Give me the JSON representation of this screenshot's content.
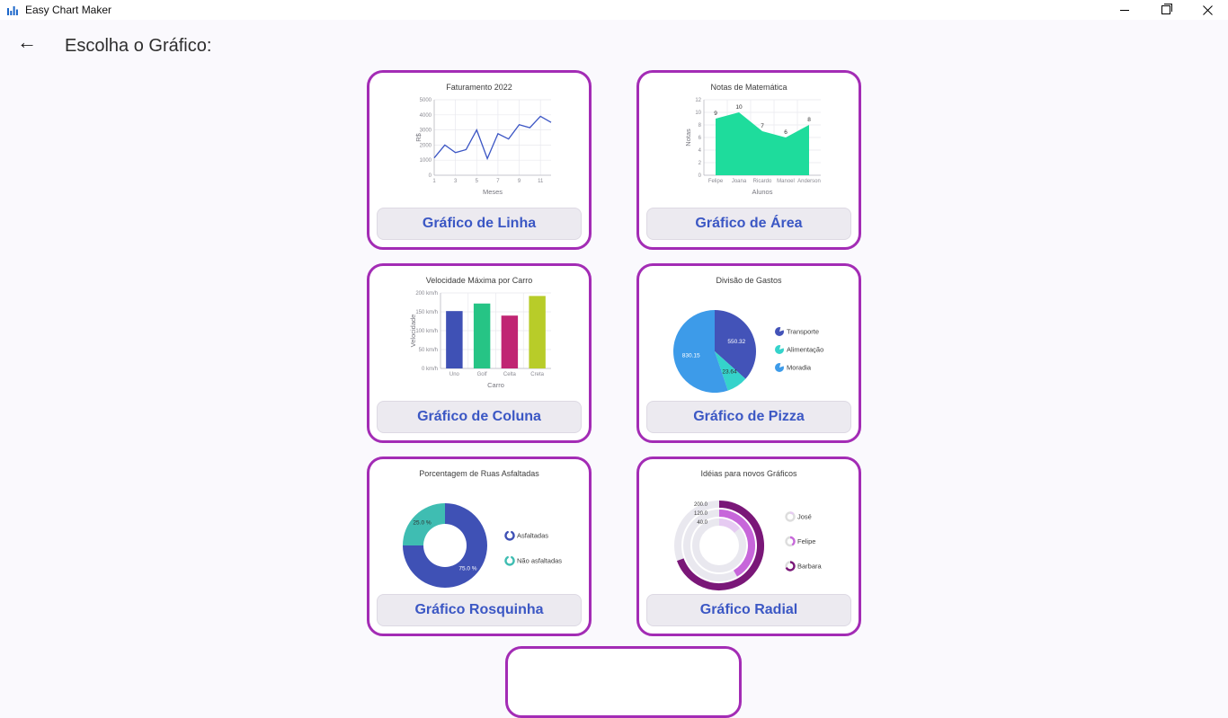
{
  "window": {
    "title": "Easy Chart Maker",
    "controls": [
      {
        "name": "minimize"
      },
      {
        "name": "restore"
      },
      {
        "name": "close"
      }
    ]
  },
  "header": {
    "back_glyph": "←",
    "title": "Escolha o Gráfico:"
  },
  "cards": [
    {
      "label": "Gráfico de Linha"
    },
    {
      "label": "Gráfico de Área"
    },
    {
      "label": "Gráfico de Coluna"
    },
    {
      "label": "Gráfico de Pizza"
    },
    {
      "label": "Gráfico Rosquinha"
    },
    {
      "label": "Gráfico Radial"
    }
  ],
  "theme": {
    "card_border": "#A32CB5",
    "label_text": "#3B57C4",
    "label_bg": "#ECEAF0",
    "page_bg": "#FAF9FD",
    "app_icon_color": "#1B66C9"
  },
  "chart_data": [
    {
      "type": "line",
      "title": "Faturamento 2022",
      "xlabel": "Meses",
      "ylabel": "R$",
      "x": [
        1,
        2,
        3,
        4,
        5,
        6,
        7,
        8,
        9,
        10,
        11,
        12
      ],
      "values": [
        1150,
        2000,
        1500,
        1700,
        3000,
        1100,
        2750,
        2400,
        3350,
        3150,
        3900,
        3500
      ],
      "ylim": [
        0,
        5000
      ],
      "yticks": [
        0,
        1000,
        2000,
        3000,
        4000,
        5000
      ],
      "xticks": [
        1,
        3,
        5,
        7,
        9,
        11
      ],
      "grid": true,
      "color": "#3B55C4"
    },
    {
      "type": "area",
      "title": "Notas de Matemática",
      "xlabel": "Alunos",
      "ylabel": "Notas",
      "categories": [
        "Felipe",
        "Joana",
        "Ricardo",
        "Manoel",
        "Anderson"
      ],
      "values": [
        9,
        10,
        7,
        6,
        8
      ],
      "ylim": [
        0,
        12
      ],
      "yticks": [
        0,
        2,
        4,
        6,
        8,
        10,
        12
      ],
      "grid": true,
      "data_labels": true,
      "color": "#1EDC9C"
    },
    {
      "type": "bar",
      "title": "Velocidade Máxima por Carro",
      "xlabel": "Carro",
      "ylabel": "Velocidade",
      "categories": [
        "Uno",
        "Golf",
        "Celta",
        "Creta"
      ],
      "values": [
        152,
        172,
        140,
        192
      ],
      "ylim": [
        0,
        200
      ],
      "yticks": [
        0,
        50,
        100,
        150,
        200
      ],
      "ytick_suffix": " km/h",
      "grid": true,
      "colors": [
        "#3F51B5",
        "#26C485",
        "#C02573",
        "#B8CC29"
      ]
    },
    {
      "type": "pie",
      "title": "Divisão de Gastos",
      "labels": [
        "Transporte",
        "Alimentação",
        "Moradia"
      ],
      "values": [
        550.32,
        123.64,
        830.15
      ],
      "colors": [
        "#4353B8",
        "#35D3CB",
        "#3D9BE9"
      ],
      "value_label_colors": [
        "#FFFFFF",
        "#2e2e2e",
        "#FFFFFF"
      ],
      "legend_position": "right"
    },
    {
      "type": "donut",
      "title": "Porcentagem de Ruas Asfaltadas",
      "labels": [
        "Asfaltadas",
        "Não asfaltadas"
      ],
      "values": [
        75.0,
        25.0
      ],
      "value_labels": [
        "75.0 %",
        "25.0 %"
      ],
      "colors": [
        "#3F51B5",
        "#3FBDB2"
      ],
      "value_label_colors": [
        "#FFFFFF",
        "#2e2e2e"
      ],
      "legend_position": "right"
    },
    {
      "type": "radial",
      "title": "Idéias para novos Gráficos",
      "labels": [
        "José",
        "Felipe",
        "Barbara"
      ],
      "values": [
        40.0,
        120.0,
        200.0
      ],
      "axis_labels": [
        "200.0",
        "120.0",
        "40.0"
      ],
      "scale_max": 288,
      "colors": [
        "#E6CBF2",
        "#C766DA",
        "#7A1778"
      ],
      "track_color": "#E9E8EF",
      "legend_position": "right"
    }
  ]
}
